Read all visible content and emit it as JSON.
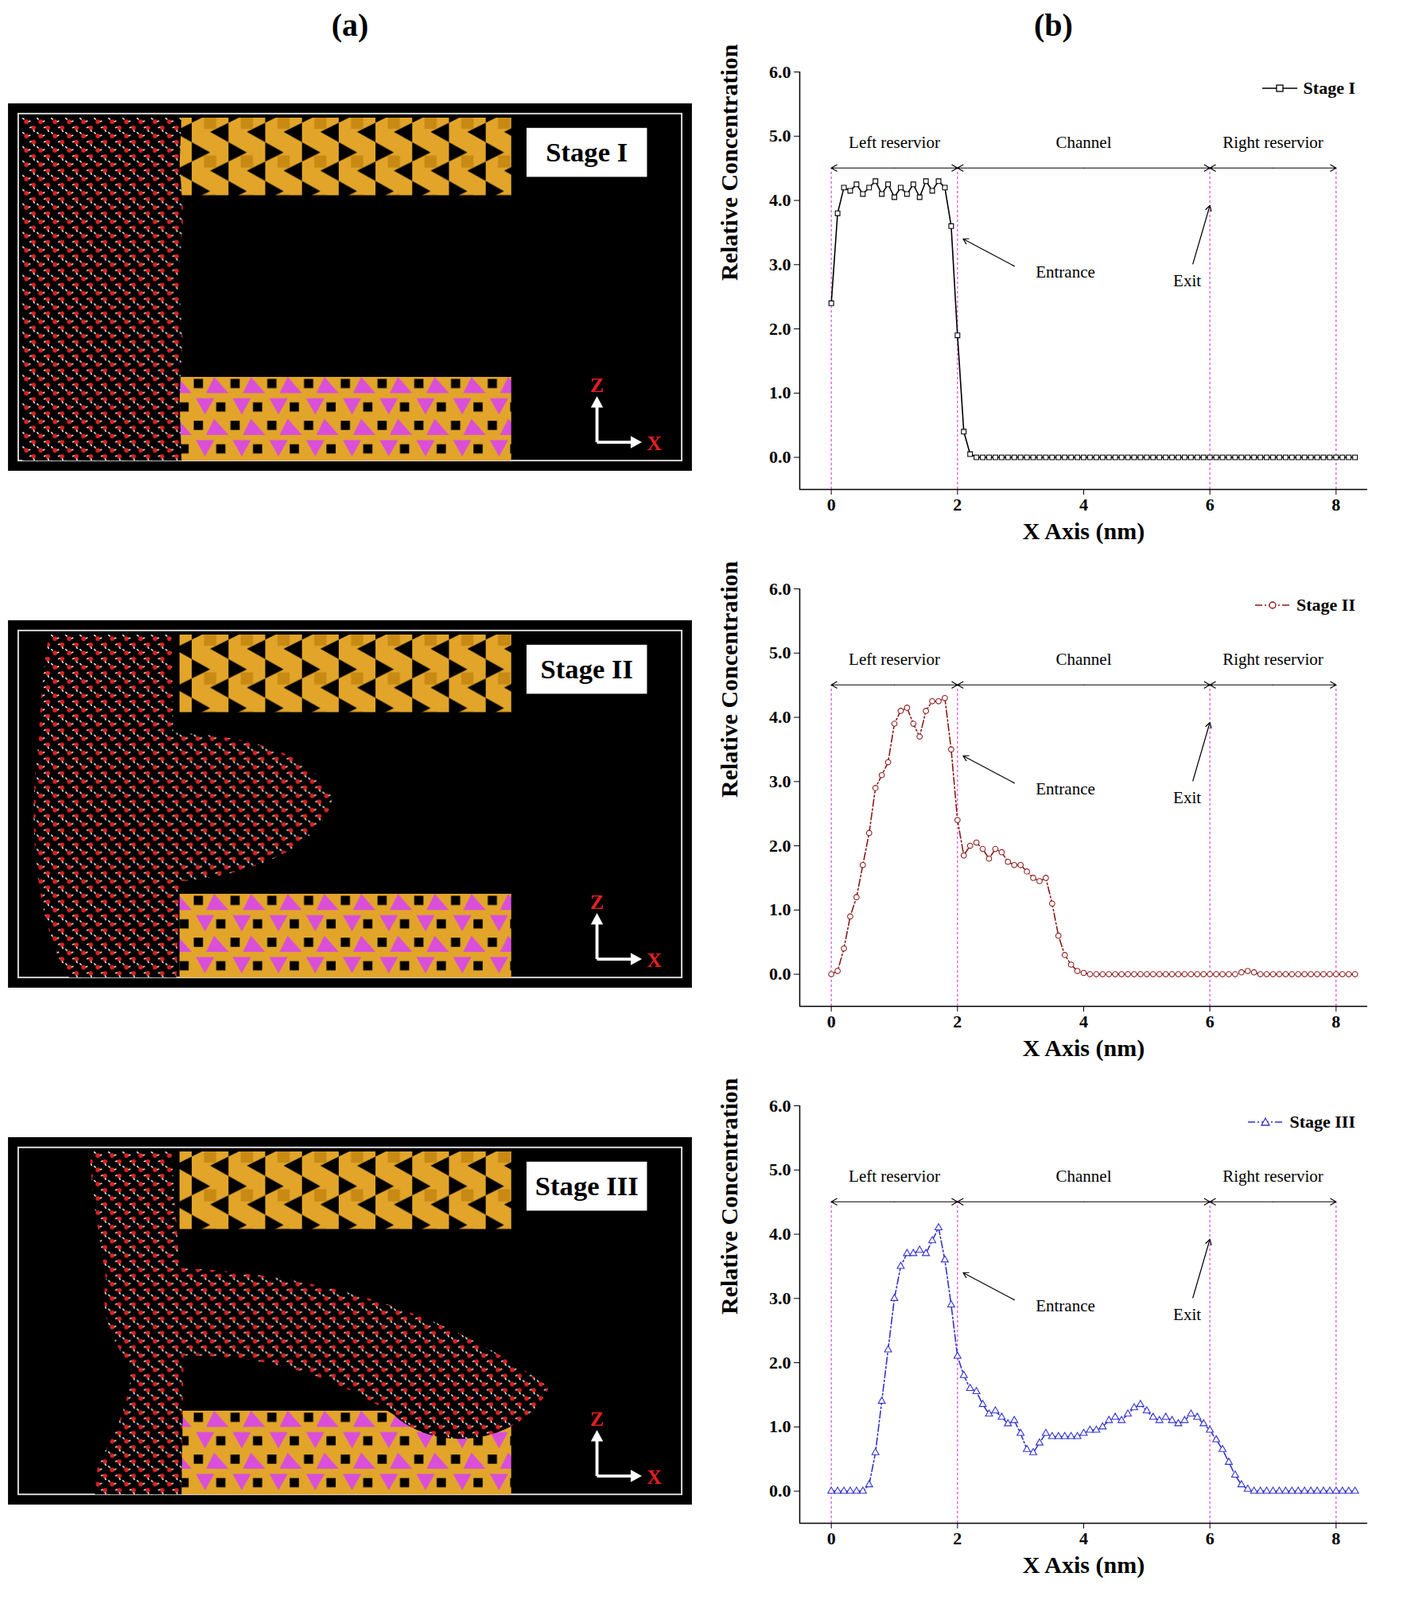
{
  "panel_labels": [
    "(a)",
    "(b)"
  ],
  "snapshots": {
    "labels": [
      "Stage I",
      "Stage II",
      "Stage III"
    ],
    "axis_labels": [
      "Z",
      "X"
    ]
  },
  "chart_data": [
    {
      "type": "line",
      "x_label": "X Axis (nm)",
      "y_label": "Relative Concentration",
      "xlim": [
        -0.5,
        8.5
      ],
      "xticks": [
        0,
        2,
        4,
        6,
        8
      ],
      "ylim": [
        -0.5,
        6.0
      ],
      "yticks": [
        {
          "value": 0,
          "label": "0.0"
        },
        {
          "value": 1,
          "label": "1.0"
        },
        {
          "value": 2,
          "label": "2.0"
        },
        {
          "value": 3,
          "label": "3.0"
        },
        {
          "value": 4,
          "label": "4.0"
        },
        {
          "value": 5,
          "label": "5.0"
        },
        {
          "value": 6,
          "label": "6.0"
        }
      ],
      "legend": "top-right",
      "regions": [
        {
          "label": "Left reservior",
          "from": 0,
          "to": 2
        },
        {
          "label": "Channel",
          "from": 2,
          "to": 6
        },
        {
          "label": "Right reservior",
          "from": 6,
          "to": 8
        }
      ],
      "annotations": [
        {
          "text": "Entrance",
          "x": 2
        },
        {
          "text": "Exit",
          "x": 6
        }
      ],
      "x": [
        0,
        0.1,
        0.2,
        0.3,
        0.4,
        0.5,
        0.6,
        0.7,
        0.8,
        0.9,
        1,
        1.1,
        1.2,
        1.3,
        1.4,
        1.5,
        1.6,
        1.7,
        1.8,
        1.9,
        2,
        2.1,
        2.2,
        2.3,
        2.4,
        2.5,
        2.6,
        2.7,
        2.8,
        2.9,
        3,
        3.1,
        3.2,
        3.3,
        3.4,
        3.5,
        3.6,
        3.7,
        3.8,
        3.9,
        4,
        4.1,
        4.2,
        4.3,
        4.4,
        4.5,
        4.6,
        4.7,
        4.8,
        4.9,
        5,
        5.1,
        5.2,
        5.3,
        5.4,
        5.5,
        5.6,
        5.7,
        5.8,
        5.9,
        6,
        6.1,
        6.2,
        6.3,
        6.4,
        6.5,
        6.6,
        6.7,
        6.8,
        6.9,
        7,
        7.1,
        7.2,
        7.3,
        7.4,
        7.5,
        7.6,
        7.7,
        7.8,
        7.9,
        8,
        8.1,
        8.2,
        8.3
      ],
      "series": [
        {
          "name": "Stage I",
          "color": "#000000",
          "marker": "square",
          "line_style": "solid",
          "values": [
            2.4,
            3.8,
            4.2,
            4.15,
            4.25,
            4.1,
            4.2,
            4.3,
            4.1,
            4.25,
            4.05,
            4.2,
            4.1,
            4.25,
            4.05,
            4.3,
            4.15,
            4.3,
            4.2,
            3.6,
            1.9,
            0.4,
            0.05,
            0,
            0,
            0,
            0,
            0,
            0,
            0,
            0,
            0,
            0,
            0,
            0,
            0,
            0,
            0,
            0,
            0,
            0,
            0,
            0,
            0,
            0,
            0,
            0,
            0,
            0,
            0,
            0,
            0,
            0,
            0,
            0,
            0,
            0,
            0,
            0,
            0,
            0,
            0,
            0,
            0,
            0,
            0,
            0,
            0,
            0,
            0,
            0,
            0,
            0,
            0,
            0,
            0,
            0,
            0,
            0,
            0,
            0,
            0,
            0,
            0
          ]
        }
      ]
    },
    {
      "type": "line",
      "x_label": "X Axis (nm)",
      "y_label": "Relative Concentration",
      "xlim": [
        -0.5,
        8.5
      ],
      "xticks": [
        0,
        2,
        4,
        6,
        8
      ],
      "ylim": [
        -0.5,
        6.0
      ],
      "yticks": [
        {
          "value": 0,
          "label": "0.0"
        },
        {
          "value": 1,
          "label": "1.0"
        },
        {
          "value": 2,
          "label": "2.0"
        },
        {
          "value": 3,
          "label": "3.0"
        },
        {
          "value": 4,
          "label": "4.0"
        },
        {
          "value": 5,
          "label": "5.0"
        },
        {
          "value": 6,
          "label": "6.0"
        }
      ],
      "legend": "top-right",
      "regions": [
        {
          "label": "Left reservior",
          "from": 0,
          "to": 2
        },
        {
          "label": "Channel",
          "from": 2,
          "to": 6
        },
        {
          "label": "Right reservior",
          "from": 6,
          "to": 8
        }
      ],
      "annotations": [
        {
          "text": "Entrance",
          "x": 2
        },
        {
          "text": "Exit",
          "x": 6
        }
      ],
      "x": [
        0,
        0.1,
        0.2,
        0.3,
        0.4,
        0.5,
        0.6,
        0.7,
        0.8,
        0.9,
        1,
        1.1,
        1.2,
        1.3,
        1.4,
        1.5,
        1.6,
        1.7,
        1.8,
        1.9,
        2,
        2.1,
        2.2,
        2.3,
        2.4,
        2.5,
        2.6,
        2.7,
        2.8,
        2.9,
        3,
        3.1,
        3.2,
        3.3,
        3.4,
        3.5,
        3.6,
        3.7,
        3.8,
        3.9,
        4,
        4.1,
        4.2,
        4.3,
        4.4,
        4.5,
        4.6,
        4.7,
        4.8,
        4.9,
        5,
        5.1,
        5.2,
        5.3,
        5.4,
        5.5,
        5.6,
        5.7,
        5.8,
        5.9,
        6,
        6.1,
        6.2,
        6.3,
        6.4,
        6.5,
        6.6,
        6.7,
        6.8,
        6.9,
        7,
        7.1,
        7.2,
        7.3,
        7.4,
        7.5,
        7.6,
        7.7,
        7.8,
        7.9,
        8,
        8.1,
        8.2,
        8.3
      ],
      "series": [
        {
          "name": "Stage II",
          "color": "#8b1a1a",
          "marker": "circle",
          "line_style": "dashdot",
          "values": [
            0,
            0.05,
            0.4,
            0.9,
            1.2,
            1.7,
            2.2,
            2.9,
            3.1,
            3.3,
            3.9,
            4.1,
            4.15,
            3.9,
            3.7,
            4.1,
            4.25,
            4.25,
            4.3,
            3.5,
            2.4,
            1.85,
            2.0,
            2.05,
            1.95,
            1.8,
            1.95,
            1.9,
            1.75,
            1.7,
            1.7,
            1.6,
            1.5,
            1.45,
            1.5,
            1.1,
            0.6,
            0.3,
            0.15,
            0.05,
            0.02,
            0,
            0,
            0,
            0,
            0,
            0,
            0,
            0,
            0,
            0,
            0,
            0,
            0,
            0,
            0,
            0,
            0,
            0,
            0,
            0,
            0,
            0,
            0,
            0,
            0.03,
            0.05,
            0.03,
            0,
            0,
            0,
            0,
            0,
            0,
            0,
            0,
            0,
            0,
            0,
            0,
            0,
            0,
            0,
            0
          ]
        }
      ]
    },
    {
      "type": "line",
      "x_label": "X Axis (nm)",
      "y_label": "Relative Concentration",
      "xlim": [
        -0.5,
        8.5
      ],
      "xticks": [
        0,
        2,
        4,
        6,
        8
      ],
      "ylim": [
        -0.5,
        6.0
      ],
      "yticks": [
        {
          "value": 0,
          "label": "0.0"
        },
        {
          "value": 1,
          "label": "1.0"
        },
        {
          "value": 2,
          "label": "2.0"
        },
        {
          "value": 3,
          "label": "3.0"
        },
        {
          "value": 4,
          "label": "4.0"
        },
        {
          "value": 5,
          "label": "5.0"
        },
        {
          "value": 6,
          "label": "6.0"
        }
      ],
      "legend": "top-right",
      "regions": [
        {
          "label": "Left reservior",
          "from": 0,
          "to": 2
        },
        {
          "label": "Channel",
          "from": 2,
          "to": 6
        },
        {
          "label": "Right reservior",
          "from": 6,
          "to": 8
        }
      ],
      "annotations": [
        {
          "text": "Entrance",
          "x": 2
        },
        {
          "text": "Exit",
          "x": 6
        }
      ],
      "x": [
        0,
        0.1,
        0.2,
        0.3,
        0.4,
        0.5,
        0.6,
        0.7,
        0.8,
        0.9,
        1,
        1.1,
        1.2,
        1.3,
        1.4,
        1.5,
        1.6,
        1.7,
        1.8,
        1.9,
        2,
        2.1,
        2.2,
        2.3,
        2.4,
        2.5,
        2.6,
        2.7,
        2.8,
        2.9,
        3,
        3.1,
        3.2,
        3.3,
        3.4,
        3.5,
        3.6,
        3.7,
        3.8,
        3.9,
        4,
        4.1,
        4.2,
        4.3,
        4.4,
        4.5,
        4.6,
        4.7,
        4.8,
        4.9,
        5,
        5.1,
        5.2,
        5.3,
        5.4,
        5.5,
        5.6,
        5.7,
        5.8,
        5.9,
        6,
        6.1,
        6.2,
        6.3,
        6.4,
        6.5,
        6.6,
        6.7,
        6.8,
        6.9,
        7,
        7.1,
        7.2,
        7.3,
        7.4,
        7.5,
        7.6,
        7.7,
        7.8,
        7.9,
        8,
        8.1,
        8.2,
        8.3
      ],
      "series": [
        {
          "name": "Stage III",
          "color": "#3333cc",
          "marker": "triangle",
          "line_style": "dashdot",
          "values": [
            0,
            0,
            0,
            0,
            0,
            0,
            0.1,
            0.6,
            1.4,
            2.2,
            3.0,
            3.5,
            3.7,
            3.7,
            3.75,
            3.7,
            3.9,
            4.1,
            3.6,
            2.9,
            2.1,
            1.8,
            1.6,
            1.55,
            1.35,
            1.2,
            1.25,
            1.15,
            1.05,
            1.1,
            0.9,
            0.65,
            0.6,
            0.75,
            0.9,
            0.85,
            0.85,
            0.85,
            0.85,
            0.85,
            0.9,
            0.95,
            0.95,
            1.0,
            1.1,
            1.15,
            1.1,
            1.2,
            1.3,
            1.35,
            1.25,
            1.15,
            1.1,
            1.15,
            1.1,
            1.05,
            1.1,
            1.2,
            1.15,
            1.05,
            0.95,
            0.8,
            0.65,
            0.45,
            0.25,
            0.1,
            0.03,
            0,
            0,
            0,
            0,
            0,
            0,
            0,
            0,
            0,
            0,
            0,
            0,
            0,
            0,
            0,
            0,
            0
          ]
        }
      ]
    }
  ]
}
